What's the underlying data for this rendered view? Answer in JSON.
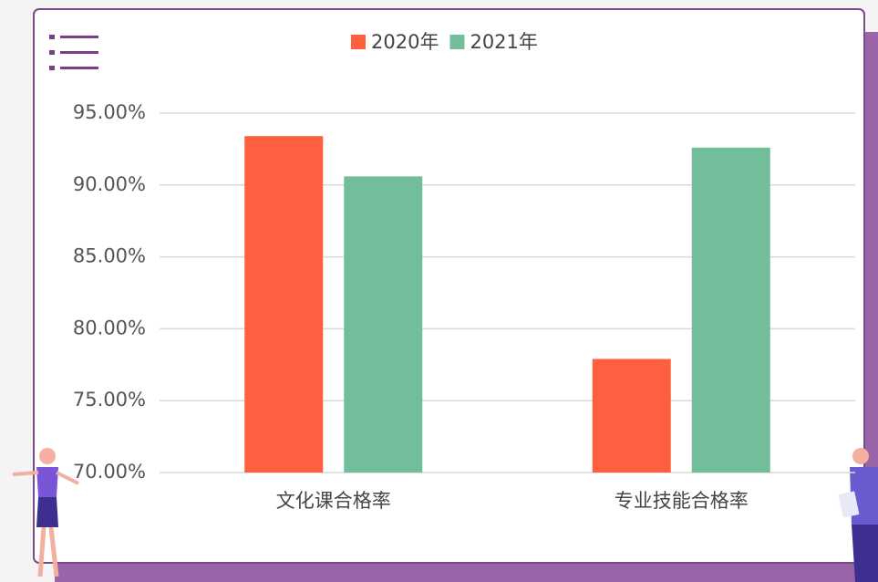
{
  "chart_data": {
    "type": "bar",
    "categories": [
      "文化课合格率",
      "专业技能合格率"
    ],
    "series": [
      {
        "name": "2020年",
        "color": "#fe5f3f",
        "values": [
          93.4,
          77.9
        ]
      },
      {
        "name": "2021年",
        "color": "#72be9b",
        "values": [
          90.6,
          92.6
        ]
      }
    ],
    "ylim": [
      70,
      95
    ],
    "yticks": [
      {
        "value": 70,
        "label": "70.00%"
      },
      {
        "value": 75,
        "label": "75.00%"
      },
      {
        "value": 80,
        "label": "80.00%"
      },
      {
        "value": 85,
        "label": "85.00%"
      },
      {
        "value": 90,
        "label": "90.00%"
      },
      {
        "value": 95,
        "label": "95.00%"
      }
    ],
    "grid": true,
    "legend": "top"
  }
}
